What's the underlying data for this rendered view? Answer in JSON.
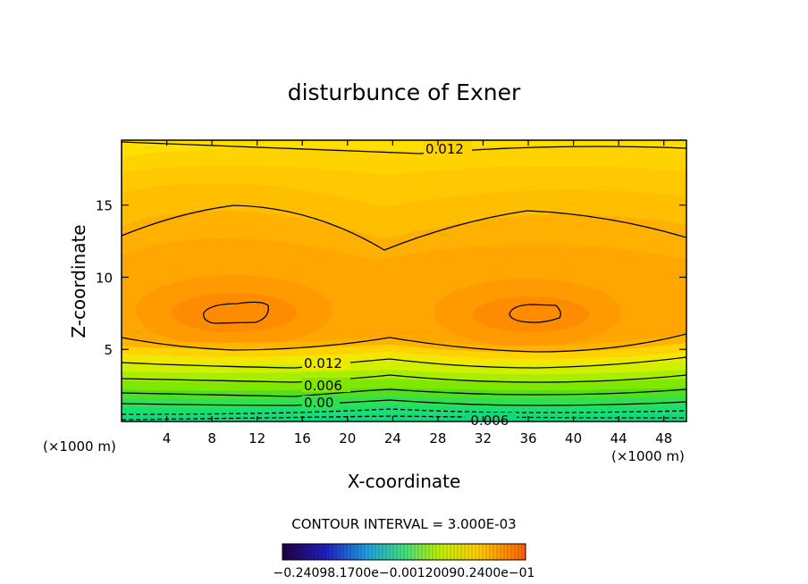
{
  "chart_data": {
    "type": "contour",
    "title": "disturbunce of Exner",
    "xlabel": "X-coordinate",
    "ylabel": "Z-coordinate",
    "x_unit_label": "(×1000 m)",
    "x_unit_label_right": "(×1000 m)",
    "xlim": [
      0,
      50
    ],
    "ylim": [
      0,
      19.5
    ],
    "x_ticks": [
      "4",
      "8",
      "12",
      "16",
      "20",
      "24",
      "28",
      "32",
      "36",
      "40",
      "44",
      "48"
    ],
    "y_ticks": [
      "5",
      "10",
      "15"
    ],
    "contour_labels": [
      "0.012",
      "0.012",
      "0.006",
      "0.00",
      "-0.006"
    ],
    "contour_interval": "CONTOUR INTERVAL = 3.000E-03",
    "colorbar_labels": [
      "-0.240",
      "-0.120e-01",
      "0.000",
      "0.120",
      "0.240e-01"
    ],
    "colorbar_printed": "−0.24098.1700e−0.00120090.2400e−01"
  }
}
